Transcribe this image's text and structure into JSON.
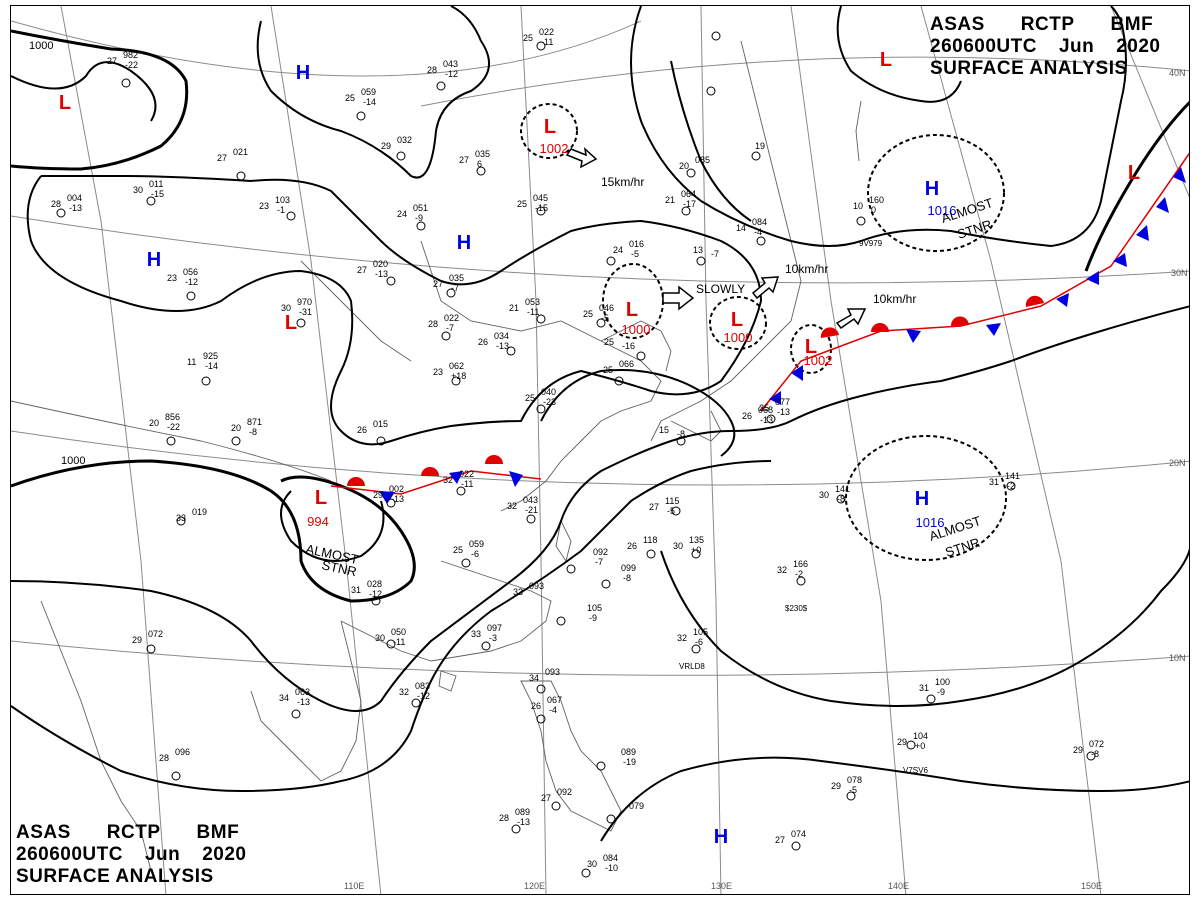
{
  "header_block": {
    "line1": [
      "ASAS",
      "RCTP",
      "BMF"
    ],
    "line2": [
      "260600UTC",
      "Jun",
      "2020"
    ],
    "line3": "SURFACE ANALYSIS"
  },
  "footer_block": {
    "line1": [
      "ASAS",
      "RCTP",
      "BMF"
    ],
    "line2": [
      "260600UTC",
      "Jun",
      "2020"
    ],
    "line3": "SURFACE ANALYSIS"
  },
  "longitude_labels": [
    "110E",
    "120E",
    "130E",
    "140E",
    "150E"
  ],
  "latitude_labels": [
    "40N",
    "30N",
    "20N",
    "10N"
  ],
  "isobar_labels": [
    "1000",
    "1000"
  ],
  "pressure_centers": [
    {
      "type": "L",
      "value": "1002",
      "color": "#e00000"
    },
    {
      "type": "L",
      "value": "1000",
      "color": "#e00000"
    },
    {
      "type": "L",
      "value": "1000",
      "color": "#e00000"
    },
    {
      "type": "L",
      "value": "1002",
      "color": "#e00000"
    },
    {
      "type": "L",
      "value": "994",
      "color": "#e00000"
    },
    {
      "type": "H",
      "value": "1016",
      "color": "#0000e0"
    },
    {
      "type": "H",
      "value": "1016",
      "color": "#0000e0"
    },
    {
      "type": "L",
      "value": "",
      "color": "#e00000"
    },
    {
      "type": "L",
      "value": "",
      "color": "#e00000"
    },
    {
      "type": "L",
      "value": "",
      "color": "#e00000"
    },
    {
      "type": "L",
      "value": "",
      "color": "#e00000"
    },
    {
      "type": "H",
      "value": "",
      "color": "#0000e0"
    },
    {
      "type": "H",
      "value": "",
      "color": "#0000e0"
    },
    {
      "type": "H",
      "value": "",
      "color": "#0000e0"
    },
    {
      "type": "H",
      "value": "",
      "color": "#0000e0"
    }
  ],
  "motion_labels": [
    "15km/hr",
    "SLOWLY",
    "10km/hr",
    "10km/hr"
  ],
  "status_labels": [
    {
      "line1": "ALMOST",
      "line2": "STNR"
    },
    {
      "line1": "ALMOST",
      "line2": "STNR"
    },
    {
      "line1": "ALMOST",
      "line2": "STNR"
    }
  ],
  "station_obs": [
    {
      "temp": "25",
      "pres": "022",
      "tend": "-11"
    },
    {
      "temp": "28",
      "pres": "043",
      "tend": "-12"
    },
    {
      "temp": "25",
      "pres": "059",
      "tend": "-14"
    },
    {
      "temp": "29",
      "pres": "032",
      "tend": ""
    },
    {
      "temp": "27",
      "pres": "021",
      "tend": ""
    },
    {
      "temp": "27",
      "pres": "035",
      "tend": "6"
    },
    {
      "temp": "25",
      "pres": "045",
      "tend": "-15"
    },
    {
      "temp": "23",
      "pres": "103",
      "tend": "-1"
    },
    {
      "temp": "24",
      "pres": "051",
      "tend": "-9"
    },
    {
      "temp": "24",
      "pres": "016",
      "tend": "-5"
    },
    {
      "temp": "27",
      "pres": "020",
      "tend": "-13"
    },
    {
      "temp": "27",
      "pres": "035",
      "tend": "-7"
    },
    {
      "temp": "21",
      "pres": "053",
      "tend": "-11"
    },
    {
      "temp": "25",
      "pres": "046",
      "tend": "-5"
    },
    {
      "temp": "28",
      "pres": "022",
      "tend": "-7"
    },
    {
      "temp": "26",
      "pres": "034",
      "tend": "-13"
    },
    {
      "temp": "23",
      "pres": "062",
      "tend": "+18"
    },
    {
      "temp": "11",
      "pres": "925",
      "tend": "-14"
    },
    {
      "temp": "20",
      "pres": "856",
      "tend": "-22"
    },
    {
      "temp": "20",
      "pres": "871",
      "tend": "-8"
    },
    {
      "temp": "26",
      "pres": "015",
      "tend": ""
    },
    {
      "temp": "25",
      "pres": "040",
      "tend": "-23"
    },
    {
      "temp": "25",
      "pres": "066",
      "tend": ""
    },
    {
      "temp": "32",
      "pres": "022",
      "tend": "-11"
    },
    {
      "temp": "29",
      "pres": "002",
      "tend": "-13"
    },
    {
      "temp": "33",
      "pres": "019",
      "tend": ""
    },
    {
      "temp": "32",
      "pres": "043",
      "tend": "-21"
    },
    {
      "temp": "25",
      "pres": "059",
      "tend": "-6"
    },
    {
      "temp": "31",
      "pres": "028",
      "tend": "-12"
    },
    {
      "temp": "30",
      "pres": "050",
      "tend": "-11"
    },
    {
      "temp": "33",
      "pres": "093",
      "tend": ""
    },
    {
      "temp": "33",
      "pres": "097",
      "tend": "-3"
    },
    {
      "temp": "32",
      "pres": "083",
      "tend": "-12"
    },
    {
      "temp": "34",
      "pres": "063",
      "tend": "-13"
    },
    {
      "temp": "29",
      "pres": "072",
      "tend": ""
    },
    {
      "temp": "28",
      "pres": "096",
      "tend": ""
    },
    {
      "temp": "27",
      "pres": "982",
      "tend": "-22"
    },
    {
      "temp": "30",
      "pres": "011",
      "tend": "-15"
    },
    {
      "temp": "28",
      "pres": "004",
      "tend": "-13"
    },
    {
      "temp": "23",
      "pres": "056",
      "tend": "-12"
    },
    {
      "temp": "30",
      "pres": "970",
      "tend": "-31"
    },
    {
      "temp": "20",
      "pres": "085",
      "tend": ""
    },
    {
      "temp": "21",
      "pres": "064",
      "tend": "-17"
    },
    {
      "temp": "19",
      "pres": "",
      "tend": ""
    },
    {
      "temp": "13",
      "pres": "",
      "tend": "-7"
    },
    {
      "temp": "14",
      "pres": "084",
      "tend": "-4"
    },
    {
      "temp": "10",
      "pres": "160",
      "tend": "0"
    },
    {
      "temp": "30",
      "pres": "141",
      "tend": "-8"
    },
    {
      "temp": "31",
      "pres": "141",
      "tend": "-2"
    },
    {
      "temp": "27",
      "pres": "115",
      "tend": "-5"
    },
    {
      "temp": "26",
      "pres": "118",
      "tend": ""
    },
    {
      "temp": "30",
      "pres": "135",
      "tend": "+0"
    },
    {
      "temp": "32",
      "pres": "166",
      "tend": "-2"
    },
    {
      "temp": "",
      "pres": "092",
      "tend": "-7"
    },
    {
      "temp": "",
      "pres": "099",
      "tend": "-8"
    },
    {
      "temp": "",
      "pres": "105",
      "tend": "-9"
    },
    {
      "temp": "32",
      "pres": "105",
      "tend": "-6"
    },
    {
      "temp": "31",
      "pres": "100",
      "tend": "-9"
    },
    {
      "temp": "29",
      "pres": "104",
      "tend": "+0"
    },
    {
      "temp": "29",
      "pres": "072",
      "tend": "-8"
    },
    {
      "temp": "29",
      "pres": "078",
      "tend": "-5"
    },
    {
      "temp": "27",
      "pres": "074",
      "tend": ""
    },
    {
      "temp": "34",
      "pres": "093",
      "tend": ""
    },
    {
      "temp": "26",
      "pres": "067",
      "tend": "-4"
    },
    {
      "temp": "",
      "pres": "089",
      "tend": "-19"
    },
    {
      "temp": "27",
      "pres": "092",
      "tend": ""
    },
    {
      "temp": "28",
      "pres": "089",
      "tend": "-13"
    },
    {
      "temp": "",
      "pres": "079",
      "tend": ""
    },
    {
      "temp": "30",
      "pres": "084",
      "tend": "-10"
    },
    {
      "temp": "25",
      "pres": "077",
      "tend": "-13"
    },
    {
      "temp": "26",
      "pres": "068",
      "tend": "-13"
    },
    {
      "temp": "25",
      "pres": "",
      "tend": "-16"
    },
    {
      "temp": "15",
      "pres": "",
      "tend": "-8"
    },
    {
      "temp": "30",
      "pres": "",
      "tend": "-21"
    }
  ],
  "special_codes": [
    "$230$",
    "VRLD8",
    "V7SV6",
    "9V979"
  ],
  "colors": {
    "low": "#e00000",
    "high": "#0000e0",
    "front_warm": "#e00000",
    "front_cold": "#0000e0",
    "isobar": "#000000",
    "grid": "#888888",
    "coast": "#555555"
  }
}
